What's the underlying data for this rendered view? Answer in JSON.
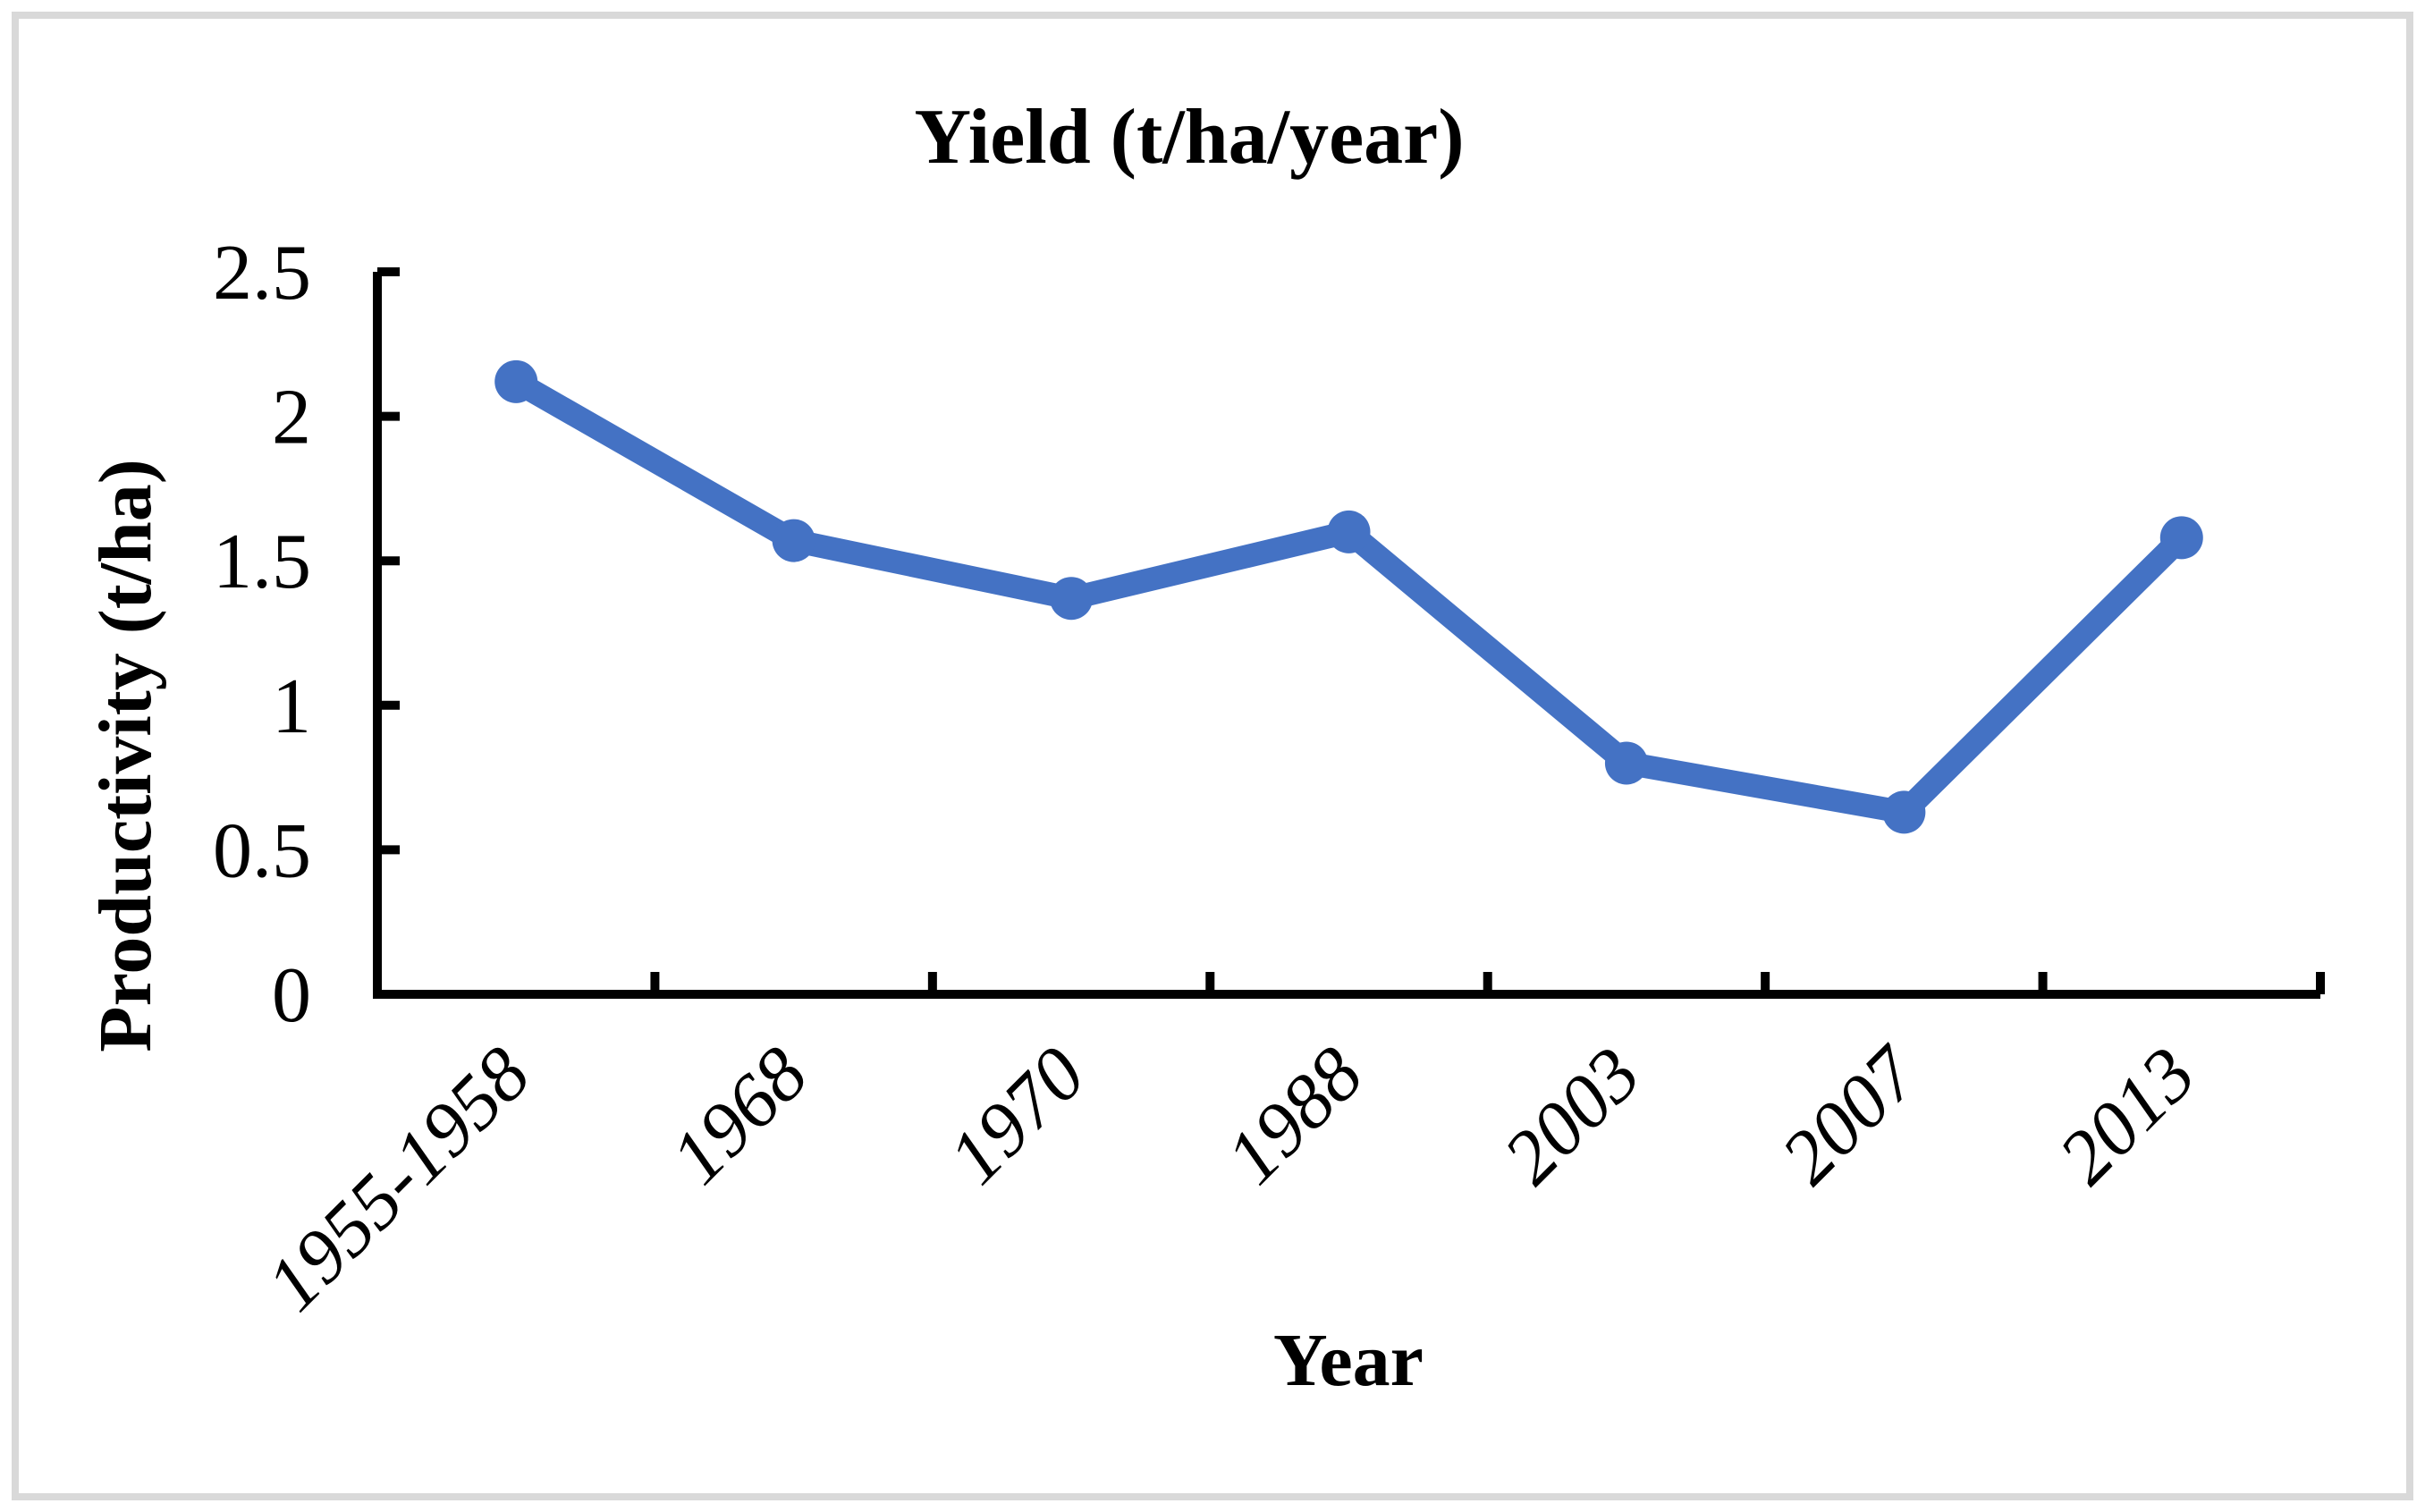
{
  "frame": {
    "border_color": "#D9D9D9",
    "background_color": "#FFFFFF"
  },
  "chart_data": {
    "type": "line",
    "title": "Yield (t/ha/year)",
    "xlabel": "Year",
    "ylabel": "Productivity (t/ha)",
    "categories": [
      "1955-1958",
      "1968",
      "1970",
      "1988",
      "2003",
      "2007",
      "2013"
    ],
    "series": [
      {
        "name": "Yield (t/ha/year)",
        "values": [
          2.12,
          1.57,
          1.37,
          1.6,
          0.8,
          0.63,
          1.58
        ]
      }
    ],
    "ylim": [
      0,
      2.5
    ],
    "y_ticks": [
      0,
      0.5,
      1,
      1.5,
      2,
      2.5
    ],
    "y_tick_labels": [
      "0",
      "0.5",
      "1",
      "1.5",
      "2",
      "2.5"
    ],
    "grid": "off",
    "legend": "none",
    "line_color": "#4472C4",
    "marker": "circle",
    "axis_color": "#000000"
  }
}
